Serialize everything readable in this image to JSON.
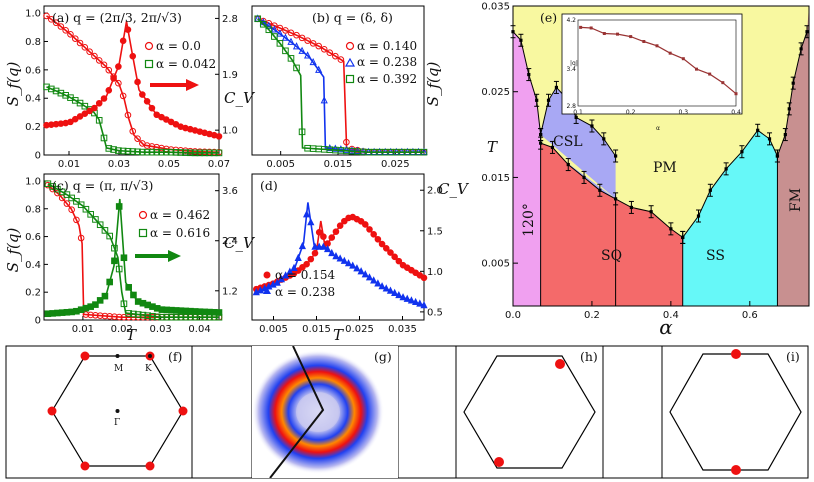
{
  "colors": {
    "red": "#ee1111",
    "green": "#118811",
    "blue": "#1133ee",
    "pm": "#f8f8a0",
    "cyan": "#66f8f8",
    "pink": "#f0a0f0",
    "csl": "#a8a8f4",
    "sq": "#f46a6a",
    "fm": "#c89090",
    "inset_line": "#993333"
  },
  "chart_data": [
    {
      "id": "a",
      "type": "line",
      "title": "(a) q = (2π/3, 2π/√3)",
      "xlabel": "",
      "ylabel": "S_f(q)",
      "y2label": "C_V",
      "xlim": [
        0.0,
        0.07
      ],
      "ylim": [
        0,
        1.05
      ],
      "y2lim": [
        0.6,
        3.0
      ],
      "xticks": [
        "0.01",
        "0.03",
        "0.05",
        "0.07"
      ],
      "yticks": [
        "0",
        "0.2",
        "0.4",
        "0.6",
        "0.8",
        "1.0"
      ],
      "y2ticks": [
        "1.0",
        "1.9",
        "2.8"
      ],
      "legend": [
        {
          "label": "α = 0.0",
          "marker": "circle-open",
          "color": "red"
        },
        {
          "label": "α = 0.042",
          "marker": "square-open",
          "color": "green"
        }
      ],
      "series": [
        {
          "name": "α = 0.0",
          "color": "red",
          "marker": "circle-open",
          "axis": "y",
          "points": [
            [
              0.001,
              0.98
            ],
            [
              0.005,
              0.93
            ],
            [
              0.01,
              0.86
            ],
            [
              0.015,
              0.78
            ],
            [
              0.02,
              0.7
            ],
            [
              0.025,
              0.62
            ],
            [
              0.03,
              0.5
            ],
            [
              0.032,
              0.4
            ],
            [
              0.034,
              0.25
            ],
            [
              0.036,
              0.14
            ],
            [
              0.04,
              0.07
            ],
            [
              0.05,
              0.04
            ],
            [
              0.06,
              0.025
            ],
            [
              0.07,
              0.02
            ]
          ]
        },
        {
          "name": "α = 0.042",
          "color": "green",
          "marker": "square-open",
          "axis": "y",
          "points": [
            [
              0.001,
              0.48
            ],
            [
              0.005,
              0.45
            ],
            [
              0.01,
              0.41
            ],
            [
              0.015,
              0.36
            ],
            [
              0.02,
              0.3
            ],
            [
              0.022,
              0.25
            ],
            [
              0.024,
              0.12
            ],
            [
              0.025,
              0.05
            ],
            [
              0.03,
              0.03
            ],
            [
              0.04,
              0.02
            ],
            [
              0.05,
              0.02
            ],
            [
              0.06,
              0.015
            ],
            [
              0.07,
              0.015
            ]
          ]
        },
        {
          "name": "C_V (α = 0.0)",
          "color": "red",
          "marker": "circle-filled",
          "axis": "y2",
          "points": [
            [
              0.001,
              1.08
            ],
            [
              0.01,
              1.12
            ],
            [
              0.02,
              1.35
            ],
            [
              0.025,
              1.55
            ],
            [
              0.03,
              2.05
            ],
            [
              0.033,
              2.75
            ],
            [
              0.035,
              2.3
            ],
            [
              0.038,
              1.65
            ],
            [
              0.045,
              1.25
            ],
            [
              0.055,
              1.05
            ],
            [
              0.065,
              0.95
            ],
            [
              0.07,
              0.9
            ]
          ]
        }
      ],
      "annotation": "arrow pointing to right axis"
    },
    {
      "id": "b",
      "type": "line",
      "title": "(b) q = (δ, δ)",
      "xlabel": "",
      "ylabel": "S_f(q)",
      "y2label": "",
      "xlim": [
        0.0,
        0.03
      ],
      "ylim": [
        0,
        1.05
      ],
      "xticks": [
        "0.005",
        "0.015",
        "0.025"
      ],
      "yticks": [],
      "legend": [
        {
          "label": "α = 0.140",
          "marker": "circle-open",
          "color": "red"
        },
        {
          "label": "α = 0.238",
          "marker": "triangle-open",
          "color": "blue"
        },
        {
          "label": "α = 0.392",
          "marker": "square-open",
          "color": "green"
        }
      ],
      "series": [
        {
          "name": "α = 0.140",
          "color": "red",
          "marker": "circle-open",
          "points": [
            [
              0.001,
              0.96
            ],
            [
              0.004,
              0.91
            ],
            [
              0.008,
              0.84
            ],
            [
              0.012,
              0.76
            ],
            [
              0.014,
              0.71
            ],
            [
              0.016,
              0.66
            ],
            [
              0.0165,
              0.05
            ],
            [
              0.02,
              0.02
            ],
            [
              0.03,
              0.02
            ]
          ]
        },
        {
          "name": "α = 0.238",
          "color": "blue",
          "marker": "triangle-open",
          "points": [
            [
              0.001,
              0.96
            ],
            [
              0.004,
              0.88
            ],
            [
              0.007,
              0.79
            ],
            [
              0.01,
              0.69
            ],
            [
              0.0125,
              0.55
            ],
            [
              0.0128,
              0.05
            ],
            [
              0.02,
              0.02
            ],
            [
              0.03,
              0.02
            ]
          ]
        },
        {
          "name": "α = 0.392",
          "color": "green",
          "marker": "square-open",
          "points": [
            [
              0.001,
              0.96
            ],
            [
              0.003,
              0.88
            ],
            [
              0.005,
              0.78
            ],
            [
              0.007,
              0.67
            ],
            [
              0.0085,
              0.56
            ],
            [
              0.0088,
              0.05
            ],
            [
              0.02,
              0.02
            ],
            [
              0.03,
              0.02
            ]
          ]
        }
      ]
    },
    {
      "id": "c",
      "type": "line",
      "title": "(c) q = (π, π/√3)",
      "xlabel": "T",
      "ylabel": "S_f(q)",
      "y2label": "C_V",
      "xlim": [
        0.0,
        0.045
      ],
      "ylim": [
        0,
        1.05
      ],
      "y2lim": [
        0.5,
        4.0
      ],
      "xticks": [
        "0.01",
        "0.02",
        "0.03",
        "0.04"
      ],
      "yticks": [
        "0",
        "0.2",
        "0.4",
        "0.6",
        "0.8",
        "1.0"
      ],
      "y2ticks": [
        "1.2",
        "2.4",
        "3.6"
      ],
      "legend": [
        {
          "label": "α = 0.462",
          "marker": "circle-open",
          "color": "red"
        },
        {
          "label": "α = 0.616",
          "marker": "square-open",
          "color": "green"
        }
      ],
      "series": [
        {
          "name": "α = 0.462",
          "color": "red",
          "marker": "circle-open",
          "axis": "y",
          "points": [
            [
              0.001,
              0.97
            ],
            [
              0.004,
              0.9
            ],
            [
              0.007,
              0.8
            ],
            [
              0.009,
              0.68
            ],
            [
              0.0098,
              0.55
            ],
            [
              0.0102,
              0.04
            ],
            [
              0.02,
              0.02
            ],
            [
              0.045,
              0.02
            ]
          ]
        },
        {
          "name": "α = 0.616",
          "color": "green",
          "marker": "square-open",
          "axis": "y",
          "points": [
            [
              0.001,
              0.98
            ],
            [
              0.006,
              0.9
            ],
            [
              0.01,
              0.82
            ],
            [
              0.014,
              0.7
            ],
            [
              0.017,
              0.6
            ],
            [
              0.019,
              0.45
            ],
            [
              0.02,
              0.2
            ],
            [
              0.021,
              0.05
            ],
            [
              0.03,
              0.02
            ],
            [
              0.045,
              0.02
            ]
          ]
        },
        {
          "name": "C_V (α = 0.616)",
          "color": "green",
          "marker": "square-filled",
          "axis": "y2",
          "points": [
            [
              0.001,
              0.65
            ],
            [
              0.008,
              0.7
            ],
            [
              0.013,
              0.85
            ],
            [
              0.016,
              1.1
            ],
            [
              0.018,
              1.8
            ],
            [
              0.0195,
              3.4
            ],
            [
              0.021,
              1.4
            ],
            [
              0.024,
              0.95
            ],
            [
              0.03,
              0.75
            ],
            [
              0.04,
              0.7
            ],
            [
              0.045,
              0.68
            ]
          ]
        }
      ],
      "annotation": "arrow pointing to right axis"
    },
    {
      "id": "d",
      "type": "line",
      "title": "(d)",
      "xlabel": "T",
      "ylabel": "",
      "y2label": "C_V",
      "xlim": [
        0.0,
        0.04
      ],
      "y2lim": [
        0.4,
        2.2
      ],
      "xticks": [
        "0.005",
        "0.015",
        "0.025",
        "0.035"
      ],
      "y2ticks": [
        "0.5",
        "1.0",
        "1.5",
        "2.0"
      ],
      "legend": [
        {
          "label": "α = 0.154",
          "marker": "circle-filled",
          "color": "red"
        },
        {
          "label": "α = 0.238",
          "marker": "triangle-filled",
          "color": "blue"
        }
      ],
      "series": [
        {
          "name": "α = 0.154",
          "color": "red",
          "marker": "circle-filled",
          "points": [
            [
              0.001,
              0.78
            ],
            [
              0.005,
              0.85
            ],
            [
              0.01,
              0.98
            ],
            [
              0.013,
              1.1
            ],
            [
              0.015,
              1.25
            ],
            [
              0.016,
              1.62
            ],
            [
              0.017,
              1.3
            ],
            [
              0.019,
              1.45
            ],
            [
              0.021,
              1.6
            ],
            [
              0.023,
              1.68
            ],
            [
              0.026,
              1.6
            ],
            [
              0.03,
              1.35
            ],
            [
              0.035,
              1.08
            ],
            [
              0.04,
              0.92
            ]
          ]
        },
        {
          "name": "α = 0.238",
          "color": "blue",
          "marker": "triangle-filled",
          "points": [
            [
              0.001,
              0.74
            ],
            [
              0.006,
              0.86
            ],
            [
              0.01,
              1.05
            ],
            [
              0.012,
              1.35
            ],
            [
              0.013,
              1.85
            ],
            [
              0.0145,
              1.3
            ],
            [
              0.017,
              1.3
            ],
            [
              0.019,
              1.2
            ],
            [
              0.024,
              1.05
            ],
            [
              0.03,
              0.82
            ],
            [
              0.035,
              0.68
            ],
            [
              0.04,
              0.58
            ]
          ]
        }
      ]
    },
    {
      "id": "e",
      "type": "area",
      "title": "(e)",
      "xlabel": "α",
      "ylabel": "T",
      "xlim": [
        0.0,
        0.75
      ],
      "ylim": [
        0.0,
        0.035
      ],
      "xticks": [
        "0.0",
        "0.2",
        "0.4",
        "0.6"
      ],
      "yticks": [
        "0.005",
        "0.015",
        "0.025",
        "0.035"
      ],
      "regions": [
        "120°",
        "CSL",
        "PM",
        "SQ",
        "SS",
        "FM"
      ],
      "boundaries": {
        "upper": [
          [
            0.0,
            0.032
          ],
          [
            0.02,
            0.031
          ],
          [
            0.04,
            0.027
          ],
          [
            0.06,
            0.024
          ],
          [
            0.07,
            0.02
          ]
        ],
        "csl_top": [
          [
            0.07,
            0.02
          ],
          [
            0.09,
            0.024
          ],
          [
            0.11,
            0.0255
          ],
          [
            0.14,
            0.024
          ],
          [
            0.16,
            0.022
          ],
          [
            0.2,
            0.021
          ],
          [
            0.23,
            0.0195
          ],
          [
            0.26,
            0.0175
          ]
        ],
        "sq_top": [
          [
            0.07,
            0.019
          ],
          [
            0.1,
            0.0185
          ],
          [
            0.14,
            0.0165
          ],
          [
            0.18,
            0.015
          ],
          [
            0.22,
            0.0135
          ],
          [
            0.26,
            0.0125
          ],
          [
            0.3,
            0.0115
          ],
          [
            0.35,
            0.011
          ],
          [
            0.4,
            0.009
          ],
          [
            0.43,
            0.008
          ]
        ],
        "ss_top": [
          [
            0.43,
            0.008
          ],
          [
            0.47,
            0.0105
          ],
          [
            0.5,
            0.0135
          ],
          [
            0.54,
            0.016
          ],
          [
            0.58,
            0.018
          ],
          [
            0.62,
            0.0205
          ],
          [
            0.65,
            0.0195
          ],
          [
            0.67,
            0.0175
          ]
        ],
        "fm_top": [
          [
            0.67,
            0.0175
          ],
          [
            0.69,
            0.02
          ],
          [
            0.7,
            0.023
          ],
          [
            0.71,
            0.026
          ],
          [
            0.73,
            0.03
          ],
          [
            0.745,
            0.032
          ]
        ]
      },
      "inset": {
        "xlabel": "α",
        "ylabel": "|q|",
        "xlim": [
          0.1,
          0.4
        ],
        "ylim": [
          2.8,
          4.2
        ],
        "xticks": [
          "0.1",
          "0.2",
          "0.3",
          "0.4"
        ],
        "yticks": [
          "2.8",
          "3.4",
          "4.2"
        ],
        "points": [
          [
            0.105,
            4.08
          ],
          [
            0.125,
            4.07
          ],
          [
            0.15,
            3.98
          ],
          [
            0.175,
            3.97
          ],
          [
            0.2,
            3.93
          ],
          [
            0.225,
            3.85
          ],
          [
            0.25,
            3.78
          ],
          [
            0.275,
            3.66
          ],
          [
            0.3,
            3.57
          ],
          [
            0.325,
            3.4
          ],
          [
            0.35,
            3.32
          ],
          [
            0.375,
            3.18
          ],
          [
            0.4,
            3.0
          ]
        ]
      }
    }
  ],
  "bz_panels": [
    {
      "id": "f",
      "tag": "(f)",
      "labels": [
        "M",
        "K",
        "Γ"
      ]
    },
    {
      "id": "g",
      "tag": "(g)"
    },
    {
      "id": "h",
      "tag": "(h)"
    },
    {
      "id": "i",
      "tag": "(i)"
    }
  ]
}
